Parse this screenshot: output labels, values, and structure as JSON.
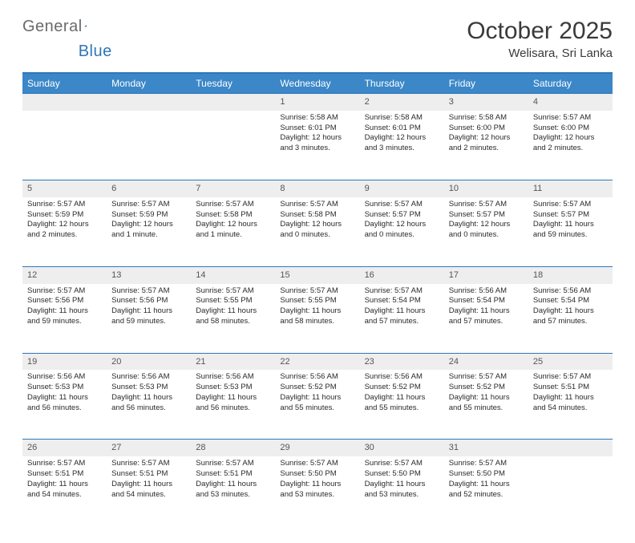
{
  "logo": {
    "text_gray": "General",
    "text_blue": "Blue"
  },
  "title": "October 2025",
  "location": "Welisara, Sri Lanka",
  "colors": {
    "header_bg": "#3b87c8",
    "border": "#2f76b8",
    "daynum_bg": "#eeeeee",
    "text": "#2a2a2a"
  },
  "day_headers": [
    "Sunday",
    "Monday",
    "Tuesday",
    "Wednesday",
    "Thursday",
    "Friday",
    "Saturday"
  ],
  "weeks": [
    [
      null,
      null,
      null,
      {
        "n": "1",
        "sr": "5:58 AM",
        "ss": "6:01 PM",
        "dl": "12 hours and 3 minutes."
      },
      {
        "n": "2",
        "sr": "5:58 AM",
        "ss": "6:01 PM",
        "dl": "12 hours and 3 minutes."
      },
      {
        "n": "3",
        "sr": "5:58 AM",
        "ss": "6:00 PM",
        "dl": "12 hours and 2 minutes."
      },
      {
        "n": "4",
        "sr": "5:57 AM",
        "ss": "6:00 PM",
        "dl": "12 hours and 2 minutes."
      }
    ],
    [
      {
        "n": "5",
        "sr": "5:57 AM",
        "ss": "5:59 PM",
        "dl": "12 hours and 2 minutes."
      },
      {
        "n": "6",
        "sr": "5:57 AM",
        "ss": "5:59 PM",
        "dl": "12 hours and 1 minute."
      },
      {
        "n": "7",
        "sr": "5:57 AM",
        "ss": "5:58 PM",
        "dl": "12 hours and 1 minute."
      },
      {
        "n": "8",
        "sr": "5:57 AM",
        "ss": "5:58 PM",
        "dl": "12 hours and 0 minutes."
      },
      {
        "n": "9",
        "sr": "5:57 AM",
        "ss": "5:57 PM",
        "dl": "12 hours and 0 minutes."
      },
      {
        "n": "10",
        "sr": "5:57 AM",
        "ss": "5:57 PM",
        "dl": "12 hours and 0 minutes."
      },
      {
        "n": "11",
        "sr": "5:57 AM",
        "ss": "5:57 PM",
        "dl": "11 hours and 59 minutes."
      }
    ],
    [
      {
        "n": "12",
        "sr": "5:57 AM",
        "ss": "5:56 PM",
        "dl": "11 hours and 59 minutes."
      },
      {
        "n": "13",
        "sr": "5:57 AM",
        "ss": "5:56 PM",
        "dl": "11 hours and 59 minutes."
      },
      {
        "n": "14",
        "sr": "5:57 AM",
        "ss": "5:55 PM",
        "dl": "11 hours and 58 minutes."
      },
      {
        "n": "15",
        "sr": "5:57 AM",
        "ss": "5:55 PM",
        "dl": "11 hours and 58 minutes."
      },
      {
        "n": "16",
        "sr": "5:57 AM",
        "ss": "5:54 PM",
        "dl": "11 hours and 57 minutes."
      },
      {
        "n": "17",
        "sr": "5:56 AM",
        "ss": "5:54 PM",
        "dl": "11 hours and 57 minutes."
      },
      {
        "n": "18",
        "sr": "5:56 AM",
        "ss": "5:54 PM",
        "dl": "11 hours and 57 minutes."
      }
    ],
    [
      {
        "n": "19",
        "sr": "5:56 AM",
        "ss": "5:53 PM",
        "dl": "11 hours and 56 minutes."
      },
      {
        "n": "20",
        "sr": "5:56 AM",
        "ss": "5:53 PM",
        "dl": "11 hours and 56 minutes."
      },
      {
        "n": "21",
        "sr": "5:56 AM",
        "ss": "5:53 PM",
        "dl": "11 hours and 56 minutes."
      },
      {
        "n": "22",
        "sr": "5:56 AM",
        "ss": "5:52 PM",
        "dl": "11 hours and 55 minutes."
      },
      {
        "n": "23",
        "sr": "5:56 AM",
        "ss": "5:52 PM",
        "dl": "11 hours and 55 minutes."
      },
      {
        "n": "24",
        "sr": "5:57 AM",
        "ss": "5:52 PM",
        "dl": "11 hours and 55 minutes."
      },
      {
        "n": "25",
        "sr": "5:57 AM",
        "ss": "5:51 PM",
        "dl": "11 hours and 54 minutes."
      }
    ],
    [
      {
        "n": "26",
        "sr": "5:57 AM",
        "ss": "5:51 PM",
        "dl": "11 hours and 54 minutes."
      },
      {
        "n": "27",
        "sr": "5:57 AM",
        "ss": "5:51 PM",
        "dl": "11 hours and 54 minutes."
      },
      {
        "n": "28",
        "sr": "5:57 AM",
        "ss": "5:51 PM",
        "dl": "11 hours and 53 minutes."
      },
      {
        "n": "29",
        "sr": "5:57 AM",
        "ss": "5:50 PM",
        "dl": "11 hours and 53 minutes."
      },
      {
        "n": "30",
        "sr": "5:57 AM",
        "ss": "5:50 PM",
        "dl": "11 hours and 53 minutes."
      },
      {
        "n": "31",
        "sr": "5:57 AM",
        "ss": "5:50 PM",
        "dl": "11 hours and 52 minutes."
      },
      null
    ]
  ],
  "labels": {
    "sunrise": "Sunrise:",
    "sunset": "Sunset:",
    "daylight": "Daylight:"
  }
}
